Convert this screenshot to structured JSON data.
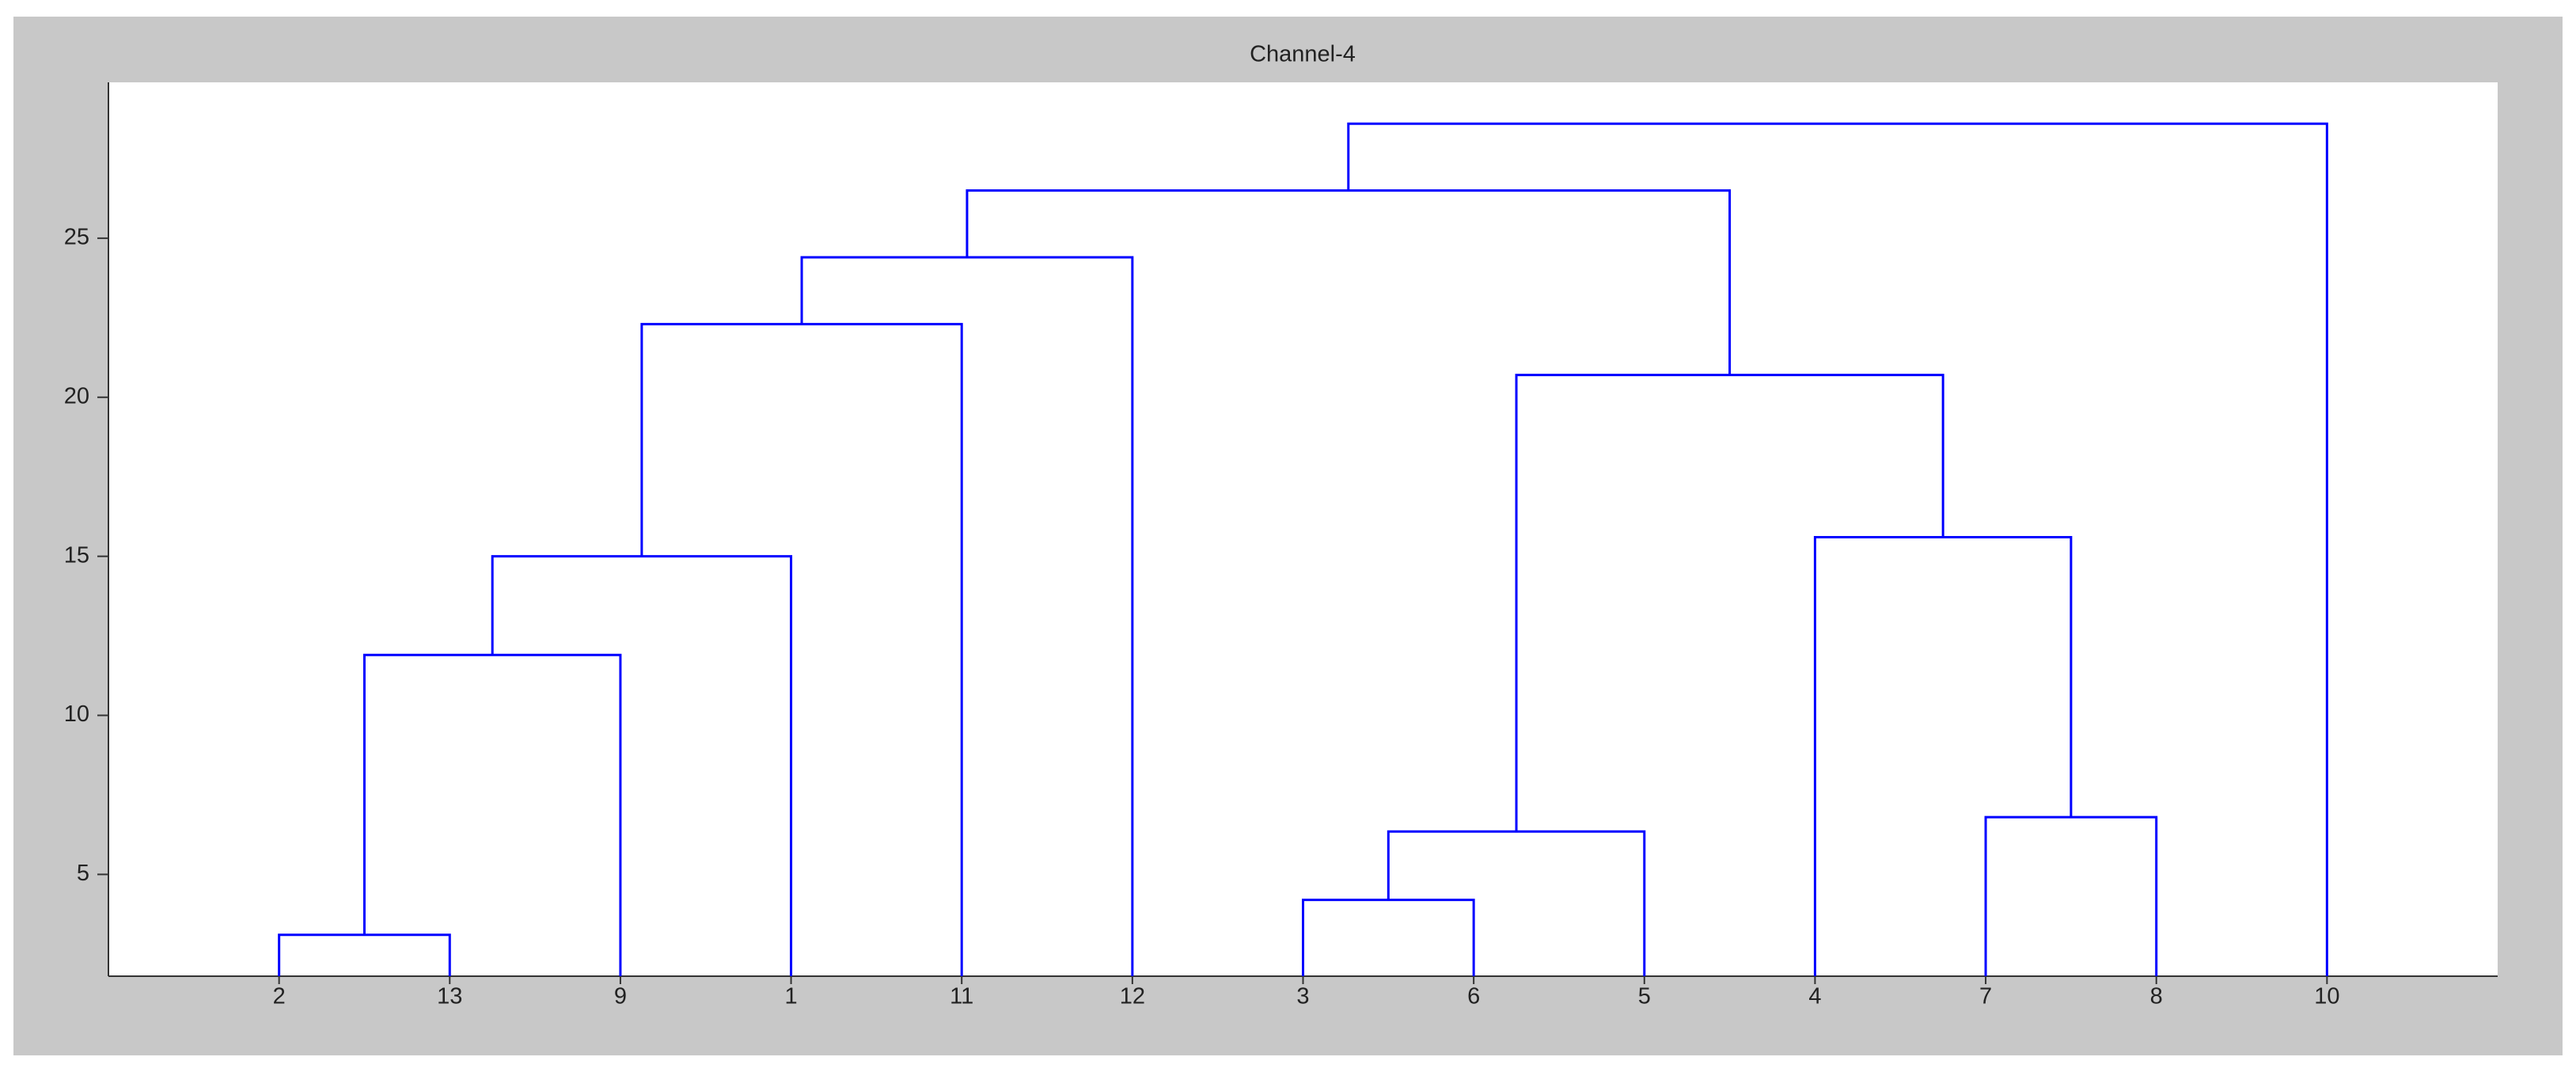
{
  "chart_data": {
    "type": "dendrogram",
    "title": "Channel-4",
    "categories": [
      "2",
      "13",
      "9",
      "1",
      "11",
      "12",
      "3",
      "6",
      "5",
      "4",
      "7",
      "8",
      "10"
    ],
    "merges": [
      {
        "children": [
          0,
          1
        ],
        "height": 3.1
      },
      {
        "children": [
          13,
          2
        ],
        "height": 11.9
      },
      {
        "children": [
          14,
          3
        ],
        "height": 15
      },
      {
        "children": [
          15,
          4
        ],
        "height": 22.3
      },
      {
        "children": [
          16,
          5
        ],
        "height": 24.4
      },
      {
        "children": [
          6,
          7
        ],
        "height": 4.2
      },
      {
        "children": [
          18,
          8
        ],
        "height": 6.35
      },
      {
        "children": [
          10,
          11
        ],
        "height": 6.8
      },
      {
        "children": [
          9,
          20
        ],
        "height": 15.6
      },
      {
        "children": [
          19,
          21
        ],
        "height": 20.7
      },
      {
        "children": [
          17,
          22
        ],
        "height": 26.5
      },
      {
        "children": [
          23,
          12
        ],
        "height": 28.6
      }
    ],
    "color": "#0000ff",
    "ylim": [
      1.8,
      29.9
    ],
    "yticks": [
      5,
      10,
      15,
      20,
      25
    ]
  }
}
